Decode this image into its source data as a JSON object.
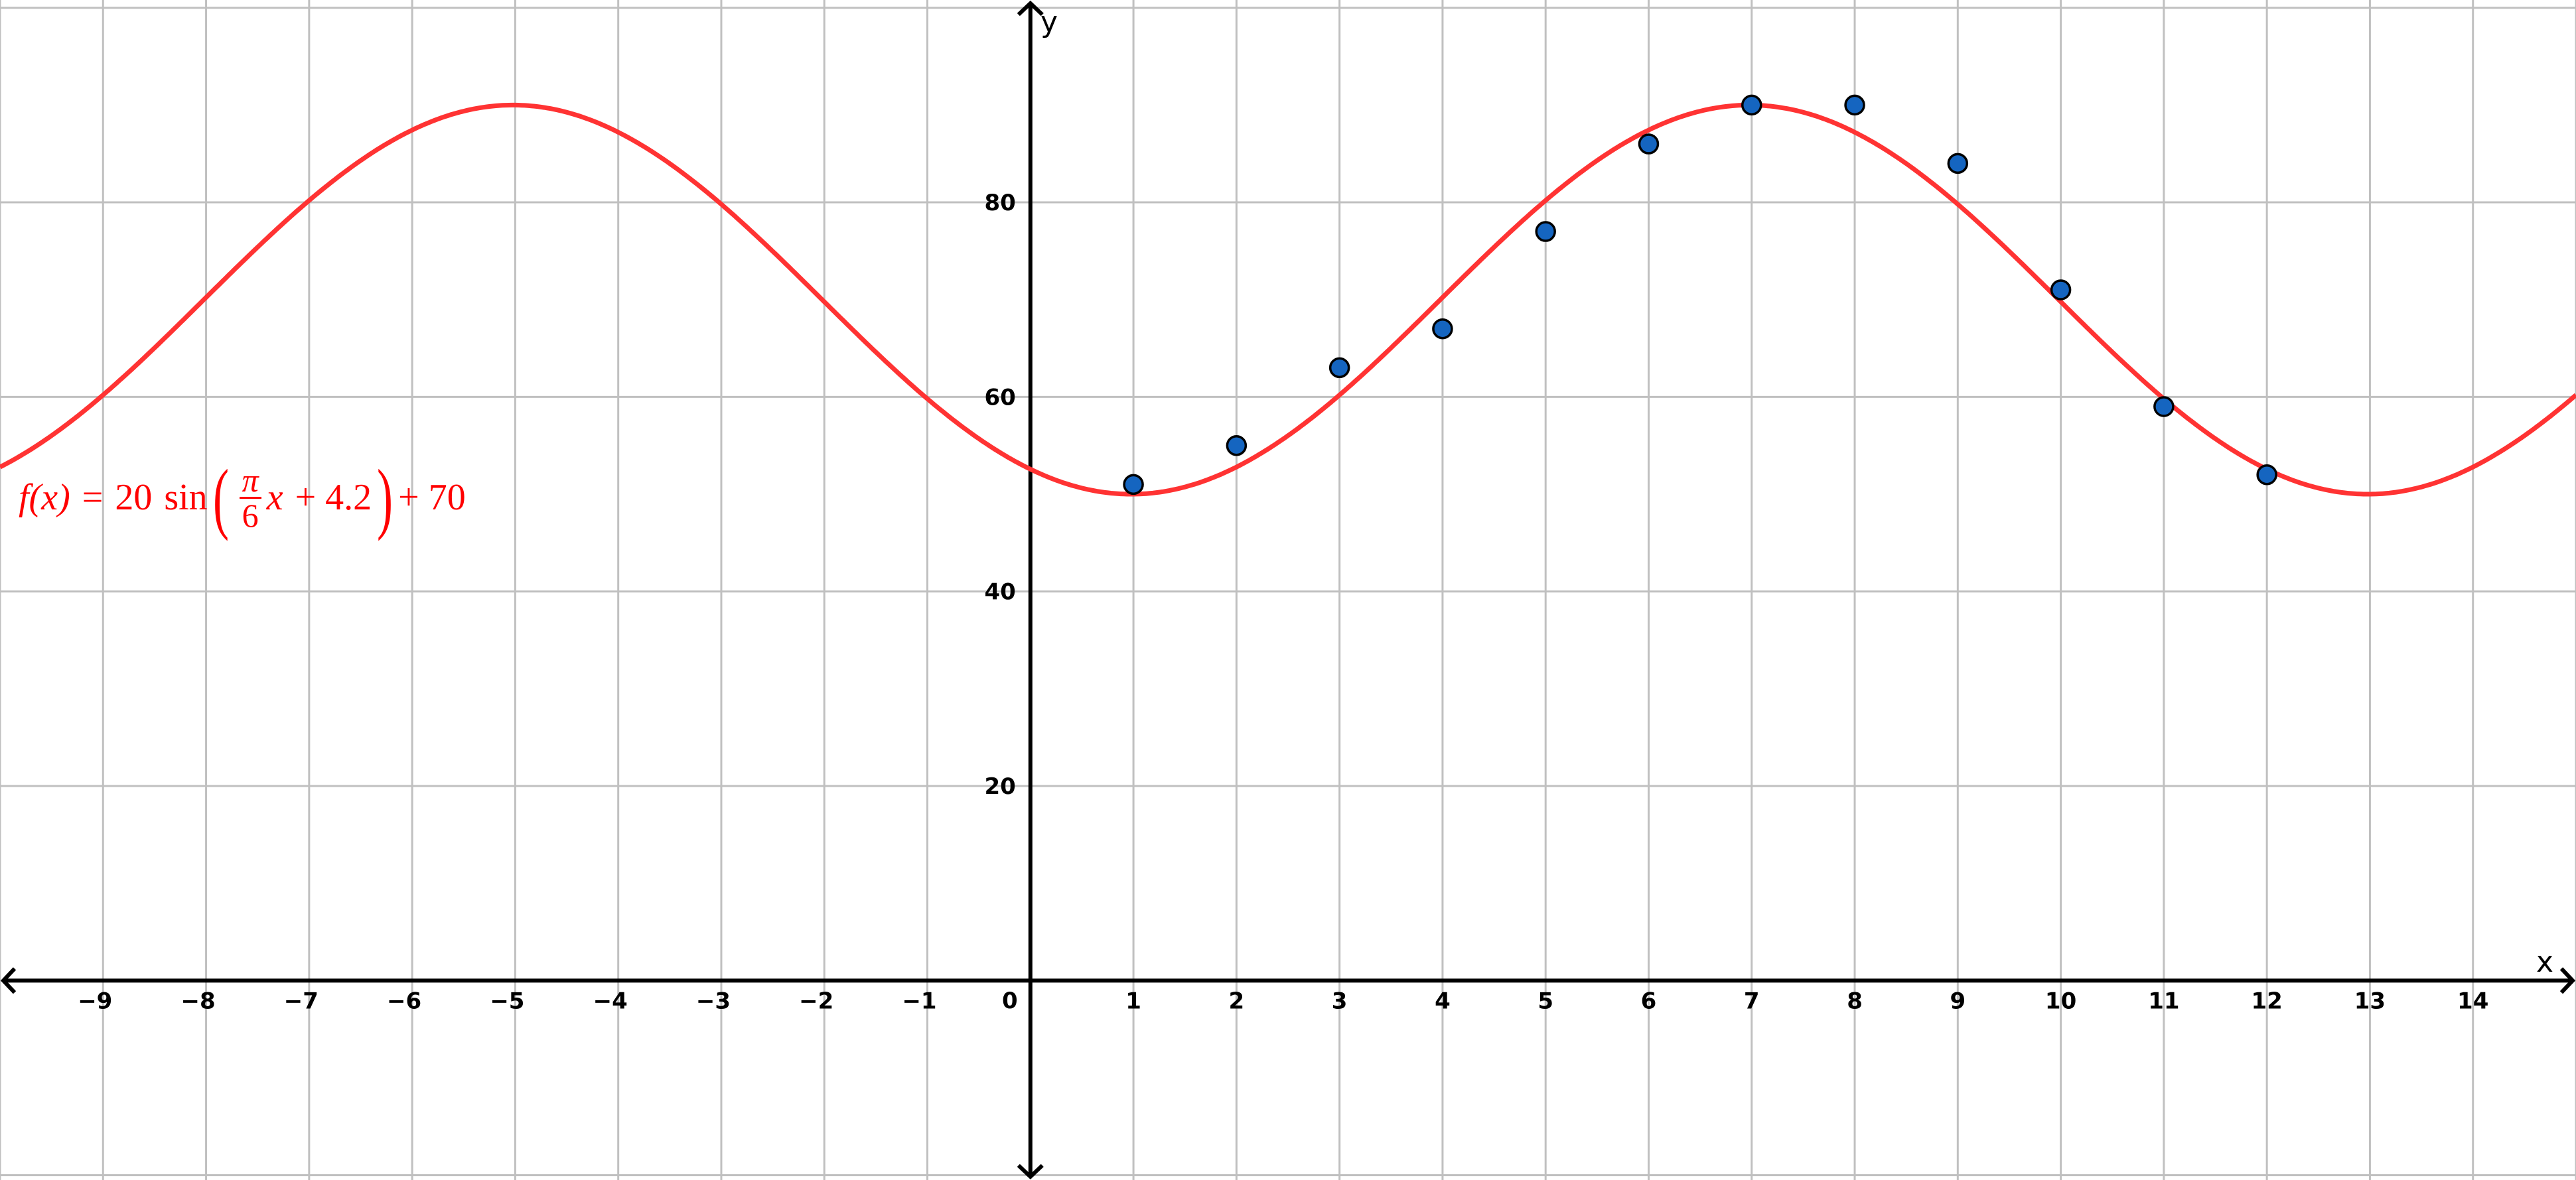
{
  "chart_data": {
    "type": "scatter",
    "xlabel": "x",
    "ylabel": "y",
    "xlim": [
      -10,
      15
    ],
    "ylim": [
      -20.5,
      100.8
    ],
    "grid": true,
    "x_ticks": [
      -9,
      -8,
      -7,
      -6,
      -5,
      -4,
      -3,
      -2,
      -1,
      1,
      2,
      3,
      4,
      5,
      6,
      7,
      8,
      9,
      10,
      11,
      12,
      13,
      14
    ],
    "y_ticks": [
      20,
      40,
      60,
      80
    ],
    "origin_label": "0",
    "points": {
      "x": [
        1,
        2,
        3,
        4,
        5,
        6,
        7,
        8,
        9,
        10,
        11,
        12
      ],
      "y": [
        51,
        55,
        63,
        67,
        77,
        86,
        90,
        90,
        84,
        71,
        59,
        52
      ],
      "color": "#1565c0"
    },
    "curve": {
      "amplitude": 20,
      "frequency": "π/6",
      "phase": 4.2,
      "offset": 70,
      "color": "#ff3333"
    },
    "formula": {
      "lhs": "f(x)",
      "eq": "=",
      "amp": "20",
      "fn": "sin",
      "num": "π",
      "den": "6",
      "var": "x",
      "plus_phase": "+ 4.2",
      "plus_offset": "+ 70"
    }
  }
}
